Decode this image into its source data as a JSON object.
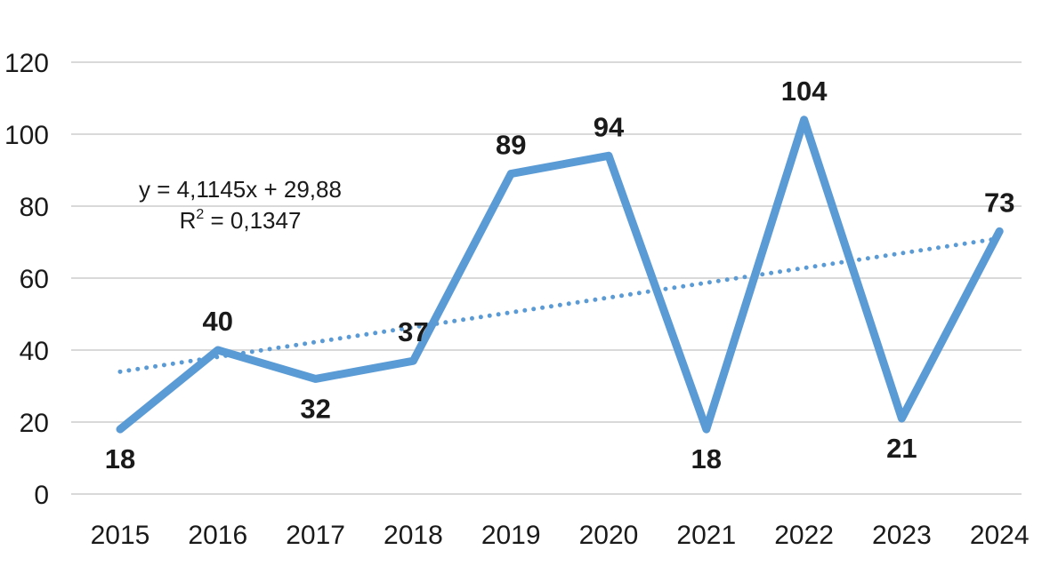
{
  "chart_data": {
    "type": "line",
    "title": "",
    "xlabel": "",
    "ylabel": "",
    "categories": [
      "2015",
      "2016",
      "2017",
      "2018",
      "2019",
      "2020",
      "2021",
      "2022",
      "2023",
      "2024"
    ],
    "series": [
      {
        "values": [
          18,
          40,
          32,
          37,
          89,
          94,
          18,
          104,
          21,
          73
        ],
        "color": "#5b9bd5"
      }
    ],
    "data_labels": [
      "18",
      "40",
      "32",
      "37",
      "89",
      "94",
      "18",
      "104",
      "21",
      "73"
    ],
    "ylim": [
      0,
      120
    ],
    "yticks": [
      "0",
      "20",
      "40",
      "60",
      "80",
      "100",
      "120"
    ],
    "grid": true,
    "legend": "none",
    "trendline": {
      "type": "linear",
      "style": "dotted",
      "slope": 4.1145,
      "intercept": 29.88,
      "equation": "y = 4,1145x + 29,88",
      "r_squared_prefix": "R",
      "r_squared_exponent": "2",
      "r_squared_value": " = 0,1347",
      "color": "#5b9bd5"
    }
  }
}
